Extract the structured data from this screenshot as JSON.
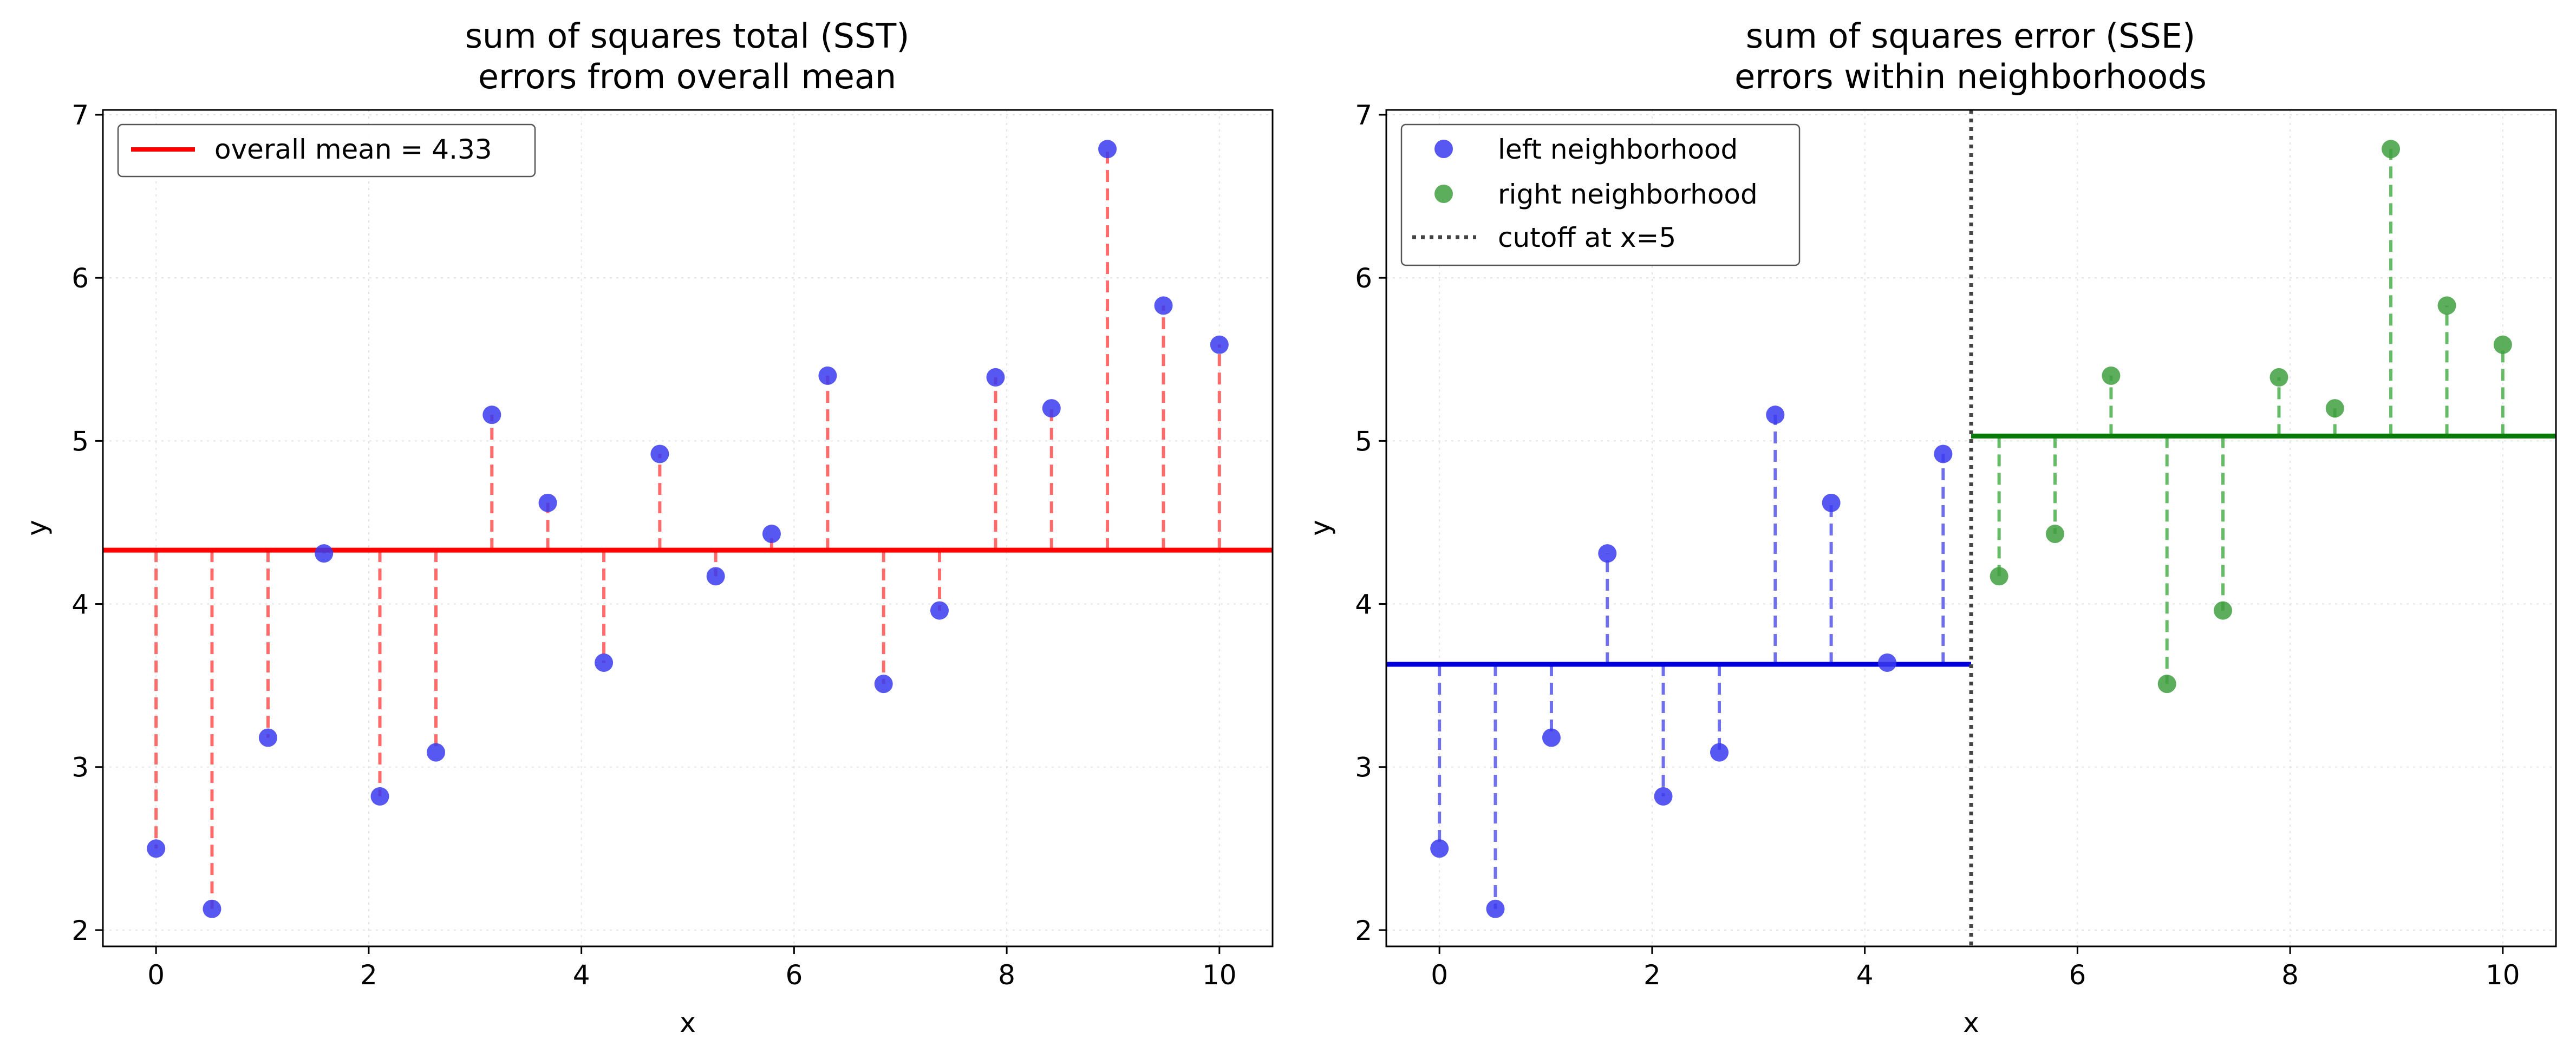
{
  "chart_data": [
    {
      "type": "scatter",
      "title": "sum of squares total (SST)",
      "subtitle": "errors from overall mean",
      "xlabel": "x",
      "ylabel": "y",
      "xlim": [
        -0.5,
        10.5
      ],
      "ylim": [
        1.9,
        7.03
      ],
      "xticks": [
        "0",
        "2",
        "4",
        "6",
        "8",
        "10"
      ],
      "yticks": [
        "2",
        "3",
        "4",
        "5",
        "6",
        "7"
      ],
      "grid": true,
      "legend_position": "top-left",
      "mean_line": {
        "y": 4.33,
        "color": "#ff0000",
        "label": "overall mean = 4.33"
      },
      "residual_color": "#ff6b6b",
      "point_color": "#3a3af0",
      "x": [
        0,
        0.526,
        1.053,
        1.579,
        2.105,
        2.632,
        3.158,
        3.684,
        4.211,
        4.737,
        5.263,
        5.789,
        6.316,
        6.842,
        7.368,
        7.895,
        8.421,
        8.947,
        9.474,
        10.0
      ],
      "y": [
        2.5,
        2.13,
        3.18,
        4.31,
        2.82,
        3.09,
        5.16,
        4.62,
        3.64,
        4.92,
        4.17,
        4.43,
        5.4,
        3.51,
        3.96,
        5.39,
        5.2,
        6.79,
        5.83,
        5.59
      ]
    },
    {
      "type": "scatter",
      "title": "sum of squares error (SSE)",
      "subtitle": "errors within neighborhoods",
      "xlabel": "x",
      "ylabel": "y",
      "xlim": [
        -0.5,
        10.5
      ],
      "ylim": [
        1.9,
        7.03
      ],
      "xticks": [
        "0",
        "2",
        "4",
        "6",
        "8",
        "10"
      ],
      "yticks": [
        "2",
        "3",
        "4",
        "5",
        "6",
        "7"
      ],
      "grid": true,
      "legend_position": "top-left",
      "cutoff": {
        "x": 5,
        "label": "cutoff at x=5",
        "color": "#444444"
      },
      "series": [
        {
          "name": "left neighborhood",
          "color": "#3a3af0",
          "mean": 3.63,
          "mean_color": "#0000dd",
          "residual_color": "#7070ee",
          "x": [
            0,
            0.526,
            1.053,
            1.579,
            2.105,
            2.632,
            3.158,
            3.684,
            4.211,
            4.737
          ],
          "y": [
            2.5,
            2.13,
            3.18,
            4.31,
            2.82,
            3.09,
            5.16,
            4.62,
            3.64,
            4.92
          ]
        },
        {
          "name": "right neighborhood",
          "color": "#3f9f3f",
          "mean": 5.03,
          "mean_color": "#0a7a0a",
          "residual_color": "#66bb66",
          "x": [
            5.263,
            5.789,
            6.316,
            6.842,
            7.368,
            7.895,
            8.421,
            8.947,
            9.474,
            10.0
          ],
          "y": [
            4.17,
            4.43,
            5.4,
            3.51,
            3.96,
            5.39,
            5.2,
            6.79,
            5.83,
            5.59
          ]
        }
      ]
    }
  ]
}
